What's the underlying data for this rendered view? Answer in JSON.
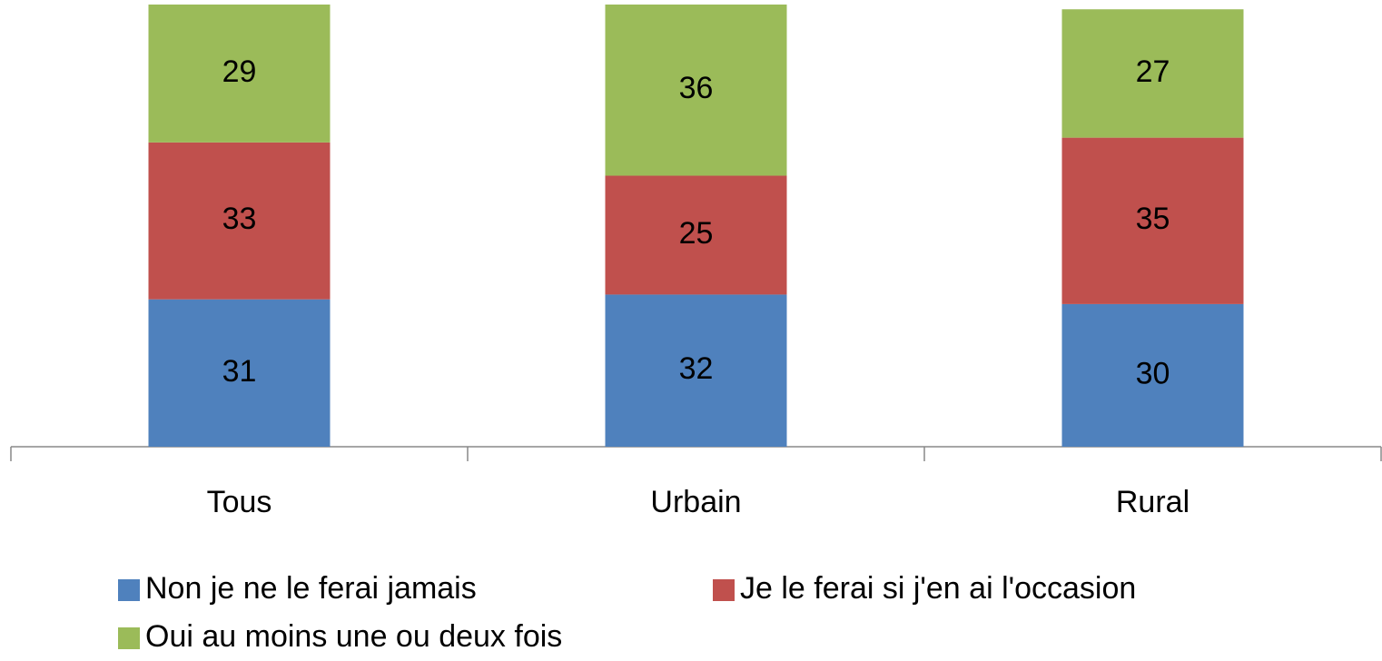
{
  "chart_data": {
    "type": "stacked_bar",
    "categories": [
      "Tous",
      "Urbain",
      "Rural"
    ],
    "series": [
      {
        "name": "Non je ne le ferai jamais",
        "color": "#4f81bd",
        "values": [
          31,
          32,
          30
        ]
      },
      {
        "name": "Je le ferai si j'en ai l'occasion",
        "color": "#c0504d",
        "values": [
          33,
          25,
          35
        ]
      },
      {
        "name": "Oui au moins une ou deux fois",
        "color": "#9bbb59",
        "values": [
          29,
          36,
          27
        ]
      }
    ]
  }
}
